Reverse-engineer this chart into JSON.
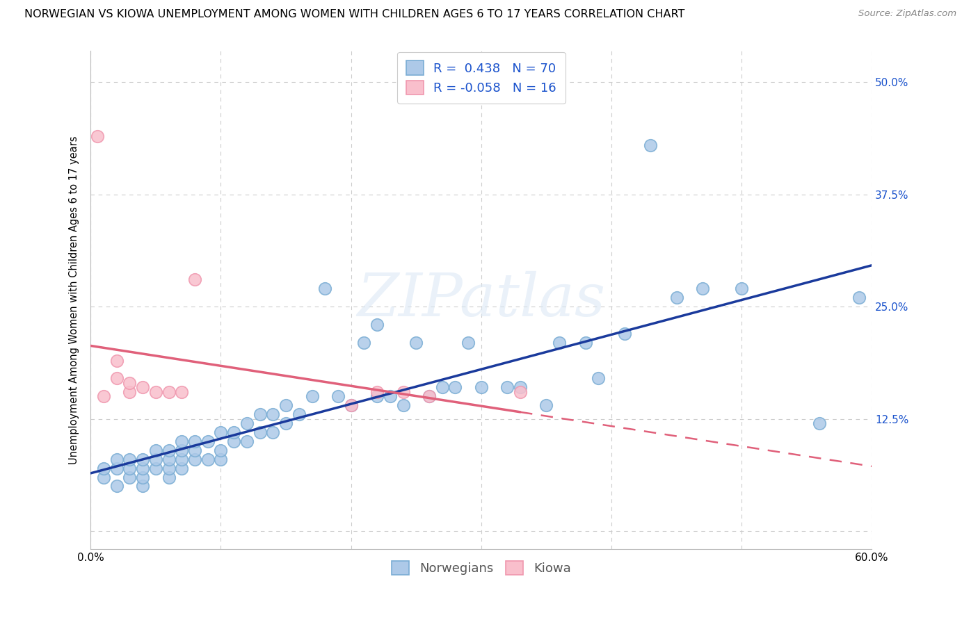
{
  "title": "NORWEGIAN VS KIOWA UNEMPLOYMENT AMONG WOMEN WITH CHILDREN AGES 6 TO 17 YEARS CORRELATION CHART",
  "source": "Source: ZipAtlas.com",
  "ylabel": "Unemployment Among Women with Children Ages 6 to 17 years",
  "xlim": [
    0.0,
    0.6
  ],
  "ylim": [
    -0.02,
    0.535
  ],
  "xticks": [
    0.0,
    0.1,
    0.2,
    0.3,
    0.4,
    0.5,
    0.6
  ],
  "xticklabels": [
    "0.0%",
    "",
    "",
    "",
    "",
    "",
    "60.0%"
  ],
  "yticks": [
    0.0,
    0.125,
    0.25,
    0.375,
    0.5
  ],
  "ytick_labels_right": [
    "",
    "12.5%",
    "25.0%",
    "37.5%",
    "50.0%"
  ],
  "background_color": "#ffffff",
  "grid_color": "#cccccc",
  "watermark": "ZIPatlas",
  "norwegian_R": 0.438,
  "norwegian_N": 70,
  "kiowa_R": -0.058,
  "kiowa_N": 16,
  "norwegian_dot_color": "#adc9e8",
  "norwegian_edge_color": "#7aadd4",
  "kiowa_dot_color": "#f9bfcc",
  "kiowa_edge_color": "#f097ae",
  "norwegian_line_color": "#1a3a9c",
  "kiowa_line_color": "#e0607a",
  "legend_blue": "#1a52cc",
  "norwegian_x": [
    0.01,
    0.01,
    0.02,
    0.02,
    0.02,
    0.03,
    0.03,
    0.03,
    0.04,
    0.04,
    0.04,
    0.04,
    0.05,
    0.05,
    0.05,
    0.06,
    0.06,
    0.06,
    0.06,
    0.07,
    0.07,
    0.07,
    0.07,
    0.08,
    0.08,
    0.08,
    0.09,
    0.09,
    0.1,
    0.1,
    0.1,
    0.11,
    0.11,
    0.12,
    0.12,
    0.13,
    0.13,
    0.14,
    0.14,
    0.15,
    0.15,
    0.16,
    0.17,
    0.18,
    0.19,
    0.2,
    0.21,
    0.22,
    0.22,
    0.23,
    0.24,
    0.25,
    0.26,
    0.27,
    0.28,
    0.29,
    0.3,
    0.32,
    0.33,
    0.35,
    0.36,
    0.38,
    0.39,
    0.41,
    0.43,
    0.45,
    0.47,
    0.5,
    0.56,
    0.59
  ],
  "norwegian_y": [
    0.06,
    0.07,
    0.05,
    0.07,
    0.08,
    0.06,
    0.07,
    0.08,
    0.05,
    0.06,
    0.07,
    0.08,
    0.07,
    0.08,
    0.09,
    0.06,
    0.07,
    0.08,
    0.09,
    0.07,
    0.08,
    0.09,
    0.1,
    0.08,
    0.09,
    0.1,
    0.08,
    0.1,
    0.08,
    0.09,
    0.11,
    0.1,
    0.11,
    0.1,
    0.12,
    0.11,
    0.13,
    0.11,
    0.13,
    0.12,
    0.14,
    0.13,
    0.15,
    0.27,
    0.15,
    0.14,
    0.21,
    0.23,
    0.15,
    0.15,
    0.14,
    0.21,
    0.15,
    0.16,
    0.16,
    0.21,
    0.16,
    0.16,
    0.16,
    0.14,
    0.21,
    0.21,
    0.17,
    0.22,
    0.43,
    0.26,
    0.27,
    0.27,
    0.12,
    0.26
  ],
  "kiowa_x": [
    0.005,
    0.01,
    0.02,
    0.02,
    0.03,
    0.03,
    0.04,
    0.05,
    0.06,
    0.07,
    0.08,
    0.2,
    0.22,
    0.24,
    0.26,
    0.33
  ],
  "kiowa_y": [
    0.44,
    0.15,
    0.17,
    0.19,
    0.155,
    0.165,
    0.16,
    0.155,
    0.155,
    0.155,
    0.28,
    0.14,
    0.155,
    0.155,
    0.15,
    0.155
  ],
  "legend_fontsize": 13,
  "title_fontsize": 11.5,
  "axis_label_fontsize": 10.5,
  "tick_fontsize": 11,
  "dot_size": 160
}
